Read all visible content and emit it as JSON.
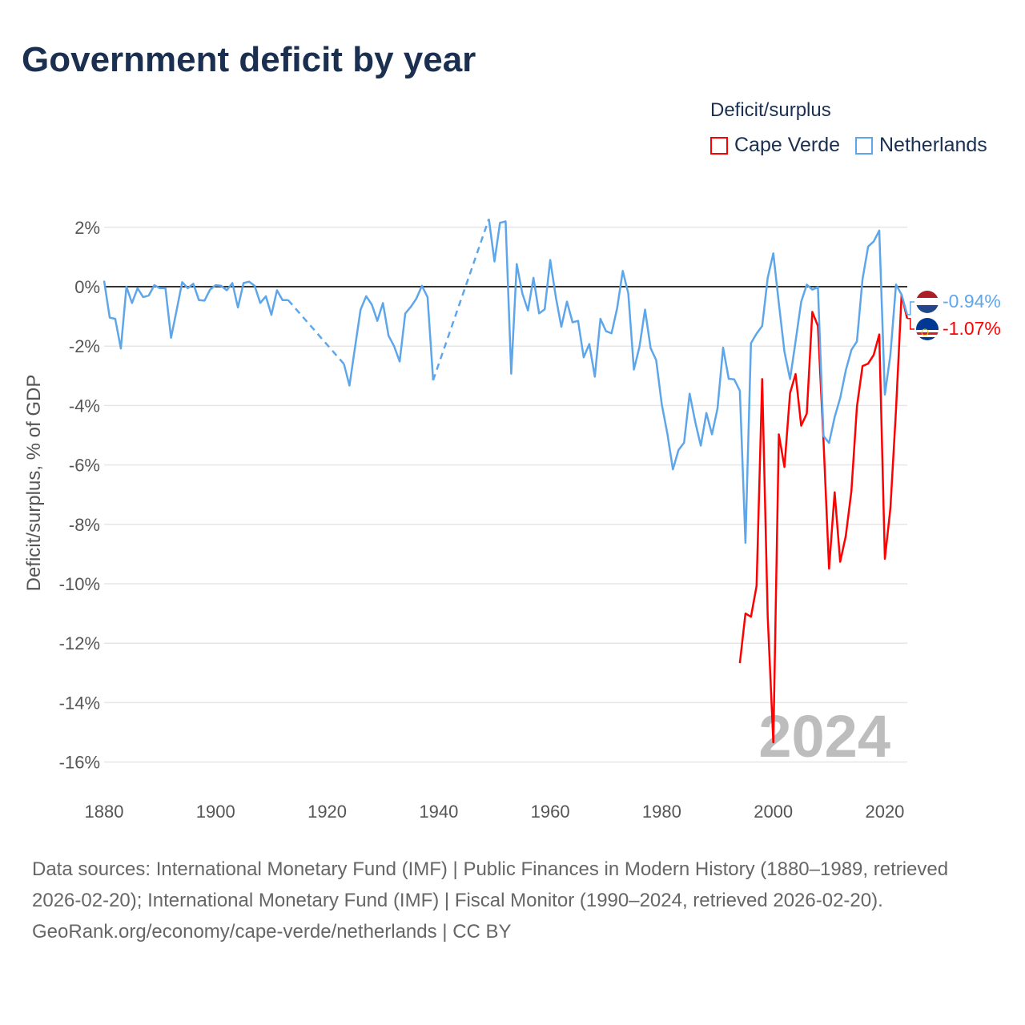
{
  "chart_data": {
    "type": "line",
    "title": "Government deficit by year",
    "xlabel": "",
    "ylabel": "Deficit/surplus, % of GDP",
    "xlim": [
      1880,
      2024
    ],
    "ylim": [
      -17,
      2.5
    ],
    "x_ticks": [
      "1880",
      "1900",
      "1920",
      "1940",
      "1960",
      "1980",
      "2000",
      "2020"
    ],
    "x_tick_values": [
      1880,
      1900,
      1920,
      1940,
      1960,
      1980,
      2000,
      2020
    ],
    "y_ticks": [
      "2%",
      "0%",
      "-2%",
      "-4%",
      "-6%",
      "-8%",
      "-10%",
      "-12%",
      "-14%",
      "-16%"
    ],
    "y_tick_values": [
      2,
      0,
      -2,
      -4,
      -6,
      -8,
      -10,
      -12,
      -14,
      -16
    ],
    "grid": true,
    "legend_title": "Deficit/surplus",
    "legend_position": "top-right",
    "year_watermark": "2024",
    "series": [
      {
        "name": "Cape Verde",
        "color": "#ff0000",
        "end_label": "-1.07%",
        "flag": "cape-verde-flag",
        "segments": [
          {
            "start": 1994,
            "values": [
              -12.67,
              -11.0,
              -11.11,
              -10.07,
              -3.11,
              -11.11,
              -15.34,
              -4.97,
              -6.07,
              -3.58,
              -2.94,
              -4.68,
              -4.27,
              -0.85,
              -1.32,
              -5.2,
              -9.49,
              -6.92,
              -9.26,
              -8.39,
              -6.88,
              -4.04,
              -2.67,
              -2.59,
              -2.3,
              -1.61,
              -9.16,
              -7.46,
              -4.15,
              -0.27,
              -1.07
            ]
          }
        ]
      },
      {
        "name": "Netherlands",
        "color": "#5ea6ea",
        "end_label": "-0.94%",
        "flag": "netherlands-flag",
        "segments": [
          {
            "start": 1880,
            "values": [
              0.2,
              -1.04,
              -1.08,
              -2.08,
              0,
              -0.55,
              -0.05,
              -0.35,
              -0.3,
              0.05,
              -0.05,
              -0.05,
              -1.72,
              -0.8,
              0.15,
              -0.05,
              0.1,
              -0.45,
              -0.47,
              -0.1,
              0.05,
              0.03,
              -0.12,
              0.12,
              -0.7,
              0.12,
              0.17,
              0.03,
              -0.55,
              -0.32,
              -0.95,
              -0.12,
              -0.45,
              -0.45
            ]
          },
          {
            "start": 1923,
            "values": [
              -2.6,
              -3.33,
              -2.03,
              -0.77,
              -0.32,
              -0.6,
              -1.15,
              -0.55,
              -1.65,
              -2.0,
              -2.52,
              -0.9,
              -0.68,
              -0.4,
              0.03,
              -0.35,
              -3.15
            ]
          },
          {
            "start": 1949,
            "values": [
              2.28,
              0.85,
              2.15,
              2.2,
              -2.93,
              0.76,
              -0.23,
              -0.8,
              0.3,
              -0.9,
              -0.76,
              0.9,
              -0.35,
              -1.35,
              -0.5,
              -1.2,
              -1.15,
              -2.38,
              -1.93,
              -3.03,
              -1.08,
              -1.5,
              -1.57,
              -0.72,
              0.53,
              -0.23,
              -2.79,
              -2.03,
              -0.77,
              -2.07,
              -2.47,
              -3.96,
              -4.95,
              -6.15,
              -5.5,
              -5.25,
              -3.6,
              -4.55,
              -5.35,
              -4.25,
              -4.97,
              -4.1,
              -2.05,
              -3.1,
              -3.12,
              -3.5,
              -8.62,
              -1.9,
              -1.58,
              -1.32,
              0.3,
              1.12,
              -0.56,
              -2.19,
              -3.11,
              -1.84,
              -0.51,
              0.07,
              -0.1,
              -0.02,
              -5.03,
              -5.26,
              -4.39,
              -3.75,
              -2.82,
              -2.13,
              -1.84,
              0.25,
              1.35,
              1.52,
              1.89,
              -3.63,
              -2.3,
              0.07,
              -0.27,
              -0.94
            ]
          }
        ]
      }
    ]
  },
  "footer": {
    "sources": "Data sources: International Monetary Fund (IMF) | Public Finances in Modern History (1880–1989, retrieved 2026-02-20); International Monetary Fund (IMF) | Fiscal Monitor (1990–2024, retrieved 2026-02-20).",
    "credit": "GeoRank.org/economy/cape-verde/netherlands | CC BY"
  }
}
